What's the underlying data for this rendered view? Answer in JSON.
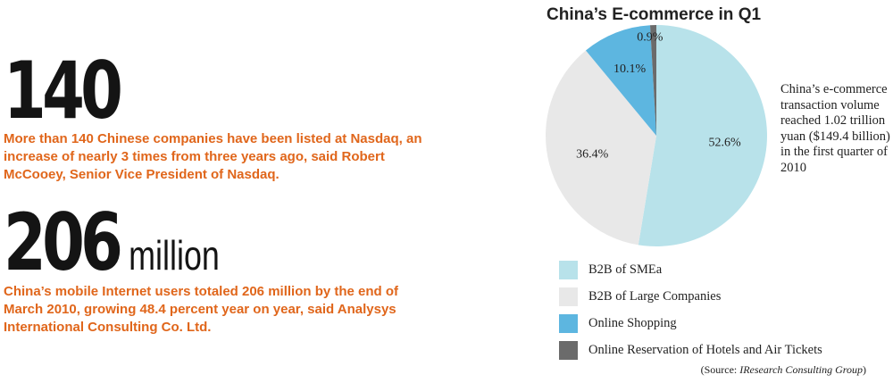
{
  "stats": [
    {
      "number": "140",
      "unit": "",
      "description": "More than 140 Chinese companies have been listed at Nasdaq, an increase of nearly 3 times from three years ago, said Robert McCooey, Senior Vice President of Nasdaq."
    },
    {
      "number": "206",
      "unit": "million",
      "description": "China’s mobile Internet users totaled 206 million by the end of March 2010, growing 48.4 percent year on year, said Analysys International Consulting Co. Ltd."
    }
  ],
  "annotation": "China’s e-commerce transaction volume reached 1.02 trillion yuan ($149.4 billion) in the first quarter of 2010",
  "source": {
    "prefix": "(Source: ",
    "name": "IResearch Consulting Group",
    "suffix": ")"
  },
  "colors": {
    "accent_text": "#e0661b",
    "number_text": "#141414"
  },
  "chart_data": {
    "type": "pie",
    "title": "China’s E-commerce in Q1",
    "legend_position": "bottom",
    "slices": [
      {
        "name": "B2B of SMEa",
        "value": 52.6,
        "label": "52.6%",
        "color": "#b8e2ea"
      },
      {
        "name": "B2B of Large Companies",
        "value": 36.4,
        "label": "36.4%",
        "color": "#e8e8e8"
      },
      {
        "name": "Online Shopping",
        "value": 10.1,
        "label": "10.1%",
        "color": "#5db6e0"
      },
      {
        "name": "Online Reservation of Hotels and Air Tickets",
        "value": 0.9,
        "label": "0.9%",
        "color": "#6b6b6b"
      }
    ]
  }
}
